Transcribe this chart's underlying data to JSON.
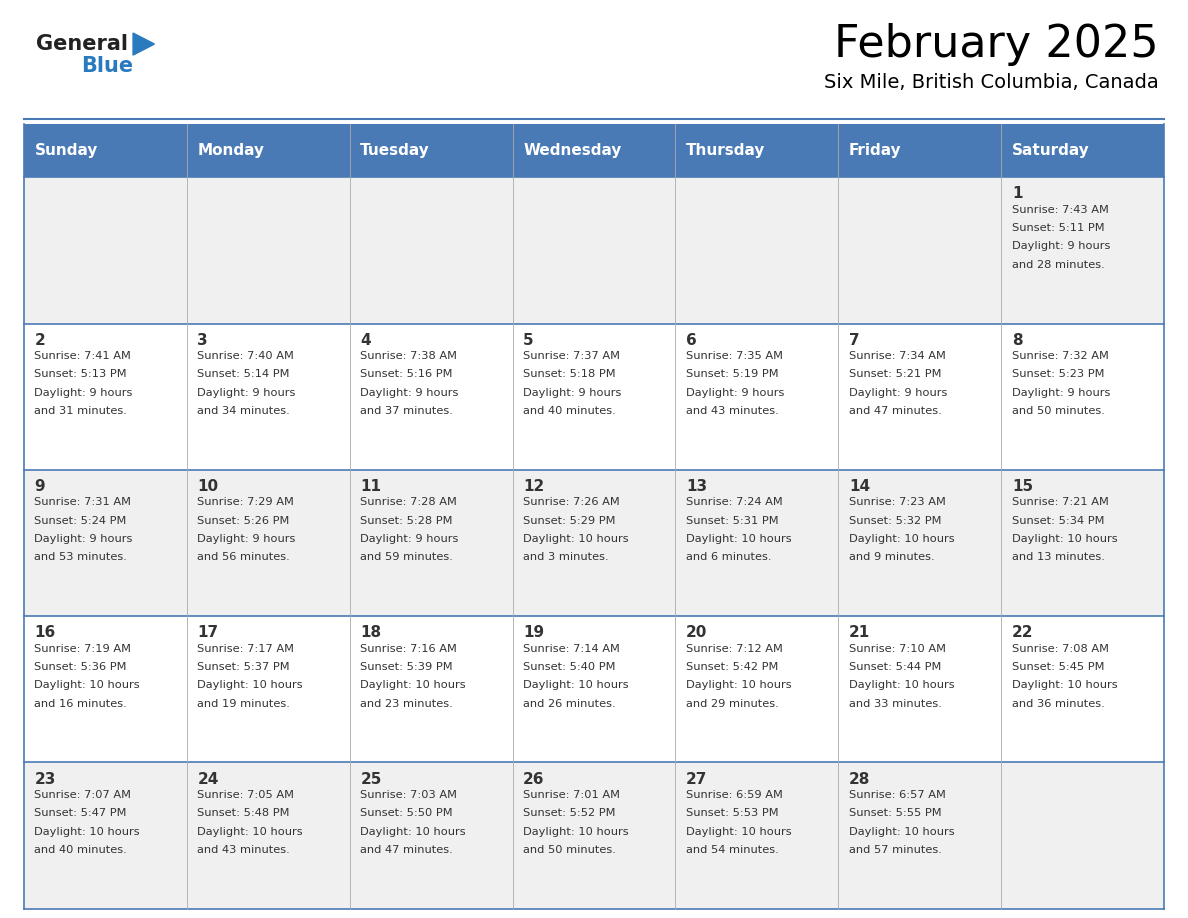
{
  "title": "February 2025",
  "subtitle": "Six Mile, British Columbia, Canada",
  "days_of_week": [
    "Sunday",
    "Monday",
    "Tuesday",
    "Wednesday",
    "Thursday",
    "Friday",
    "Saturday"
  ],
  "header_bg": "#4a7ab5",
  "header_text": "#ffffff",
  "row_bg_odd": "#f0f0f0",
  "row_bg_even": "#ffffff",
  "text_color": "#333333",
  "border_color": "#4a7ab5",
  "cell_border_color": "#aaaaaa",
  "logo_general_color": "#222222",
  "logo_blue_color": "#2a7abf",
  "calendar_data": [
    [
      null,
      null,
      null,
      null,
      null,
      null,
      {
        "day": 1,
        "sunrise": "7:43 AM",
        "sunset": "5:11 PM",
        "daylight": "9 hours and 28 minutes."
      }
    ],
    [
      {
        "day": 2,
        "sunrise": "7:41 AM",
        "sunset": "5:13 PM",
        "daylight": "9 hours and 31 minutes."
      },
      {
        "day": 3,
        "sunrise": "7:40 AM",
        "sunset": "5:14 PM",
        "daylight": "9 hours and 34 minutes."
      },
      {
        "day": 4,
        "sunrise": "7:38 AM",
        "sunset": "5:16 PM",
        "daylight": "9 hours and 37 minutes."
      },
      {
        "day": 5,
        "sunrise": "7:37 AM",
        "sunset": "5:18 PM",
        "daylight": "9 hours and 40 minutes."
      },
      {
        "day": 6,
        "sunrise": "7:35 AM",
        "sunset": "5:19 PM",
        "daylight": "9 hours and 43 minutes."
      },
      {
        "day": 7,
        "sunrise": "7:34 AM",
        "sunset": "5:21 PM",
        "daylight": "9 hours and 47 minutes."
      },
      {
        "day": 8,
        "sunrise": "7:32 AM",
        "sunset": "5:23 PM",
        "daylight": "9 hours and 50 minutes."
      }
    ],
    [
      {
        "day": 9,
        "sunrise": "7:31 AM",
        "sunset": "5:24 PM",
        "daylight": "9 hours and 53 minutes."
      },
      {
        "day": 10,
        "sunrise": "7:29 AM",
        "sunset": "5:26 PM",
        "daylight": "9 hours and 56 minutes."
      },
      {
        "day": 11,
        "sunrise": "7:28 AM",
        "sunset": "5:28 PM",
        "daylight": "9 hours and 59 minutes."
      },
      {
        "day": 12,
        "sunrise": "7:26 AM",
        "sunset": "5:29 PM",
        "daylight": "10 hours and 3 minutes."
      },
      {
        "day": 13,
        "sunrise": "7:24 AM",
        "sunset": "5:31 PM",
        "daylight": "10 hours and 6 minutes."
      },
      {
        "day": 14,
        "sunrise": "7:23 AM",
        "sunset": "5:32 PM",
        "daylight": "10 hours and 9 minutes."
      },
      {
        "day": 15,
        "sunrise": "7:21 AM",
        "sunset": "5:34 PM",
        "daylight": "10 hours and 13 minutes."
      }
    ],
    [
      {
        "day": 16,
        "sunrise": "7:19 AM",
        "sunset": "5:36 PM",
        "daylight": "10 hours and 16 minutes."
      },
      {
        "day": 17,
        "sunrise": "7:17 AM",
        "sunset": "5:37 PM",
        "daylight": "10 hours and 19 minutes."
      },
      {
        "day": 18,
        "sunrise": "7:16 AM",
        "sunset": "5:39 PM",
        "daylight": "10 hours and 23 minutes."
      },
      {
        "day": 19,
        "sunrise": "7:14 AM",
        "sunset": "5:40 PM",
        "daylight": "10 hours and 26 minutes."
      },
      {
        "day": 20,
        "sunrise": "7:12 AM",
        "sunset": "5:42 PM",
        "daylight": "10 hours and 29 minutes."
      },
      {
        "day": 21,
        "sunrise": "7:10 AM",
        "sunset": "5:44 PM",
        "daylight": "10 hours and 33 minutes."
      },
      {
        "day": 22,
        "sunrise": "7:08 AM",
        "sunset": "5:45 PM",
        "daylight": "10 hours and 36 minutes."
      }
    ],
    [
      {
        "day": 23,
        "sunrise": "7:07 AM",
        "sunset": "5:47 PM",
        "daylight": "10 hours and 40 minutes."
      },
      {
        "day": 24,
        "sunrise": "7:05 AM",
        "sunset": "5:48 PM",
        "daylight": "10 hours and 43 minutes."
      },
      {
        "day": 25,
        "sunrise": "7:03 AM",
        "sunset": "5:50 PM",
        "daylight": "10 hours and 47 minutes."
      },
      {
        "day": 26,
        "sunrise": "7:01 AM",
        "sunset": "5:52 PM",
        "daylight": "10 hours and 50 minutes."
      },
      {
        "day": 27,
        "sunrise": "6:59 AM",
        "sunset": "5:53 PM",
        "daylight": "10 hours and 54 minutes."
      },
      {
        "day": 28,
        "sunrise": "6:57 AM",
        "sunset": "5:55 PM",
        "daylight": "10 hours and 57 minutes."
      },
      null
    ]
  ]
}
